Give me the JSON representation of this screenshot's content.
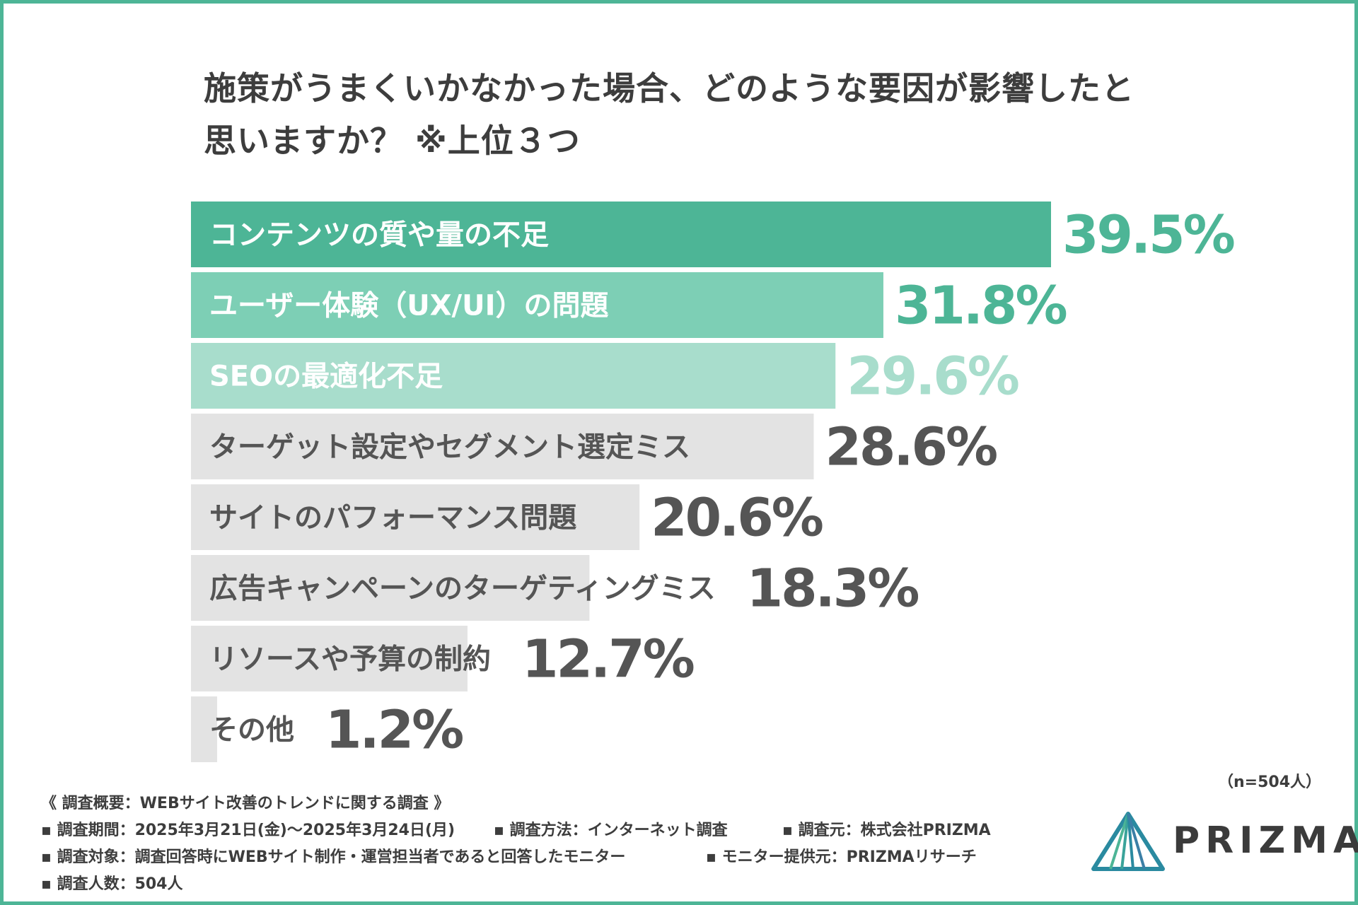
{
  "title_lines": [
    "施策がうまくいかなかった場合、どのような要因が影響したと",
    "思いますか？ ※上位３つ"
  ],
  "chart_data": {
    "type": "bar",
    "orientation": "horizontal",
    "title": "施策がうまくいかなかった場合、どのような要因が影響したと思いますか？ ※上位３つ",
    "categories": [
      "コンテンツの質や量の不足",
      "ユーザー体験（UX/UI）の問題",
      "SEOの最適化不足",
      "ターゲット設定やセグメント選定ミス",
      "サイトのパフォーマンス問題",
      "広告キャンペーンのターゲティングミス",
      "リソースや予算の制約",
      "その他"
    ],
    "values": [
      39.5,
      31.8,
      29.6,
      28.6,
      20.6,
      18.3,
      12.7,
      1.2
    ],
    "value_labels": [
      "39.5%",
      "31.8%",
      "29.6%",
      "28.6%",
      "20.6%",
      "18.3%",
      "12.7%",
      "1.2%"
    ],
    "unit": "%",
    "xlim": [
      0,
      39.5
    ],
    "grid": false,
    "legend": "none",
    "colors": {
      "bar_fills": [
        "#4db596",
        "#7dcfb5",
        "#a8ddcc",
        "#e3e3e3",
        "#e3e3e3",
        "#e3e3e3",
        "#e3e3e3",
        "#e3e3e3"
      ],
      "bar_label_colors": [
        "#ffffff",
        "#ffffff",
        "#ffffff",
        "#555555",
        "#555555",
        "#555555",
        "#555555",
        "#555555"
      ],
      "value_colors": [
        "#4db596",
        "#4db596",
        "#a8ddcc",
        "#555555",
        "#555555",
        "#555555",
        "#555555",
        "#555555"
      ]
    }
  },
  "sample_size": "（n=504人）",
  "footer": {
    "heading": "《 調査概要：WEBサイト改善のトレンドに関する調査 》",
    "period": "▪ 調査期間：2025年3月21日(金)〜2025年3月24日(月)",
    "method": "▪ 調査方法：インターネット調査",
    "source": "▪ 調査元：株式会社PRIZMA",
    "target": "▪ 調査対象：調査回答時にWEBサイト制作・運営担当者であると回答したモニター",
    "provider": "▪ モニター提供元：PRIZMAリサーチ",
    "count": "▪ 調査人数：504人"
  },
  "logo": {
    "text": "PRIZMA",
    "color": "#3b3b3b",
    "accent": "#2a8aa0"
  },
  "frame_color": "#4db596"
}
